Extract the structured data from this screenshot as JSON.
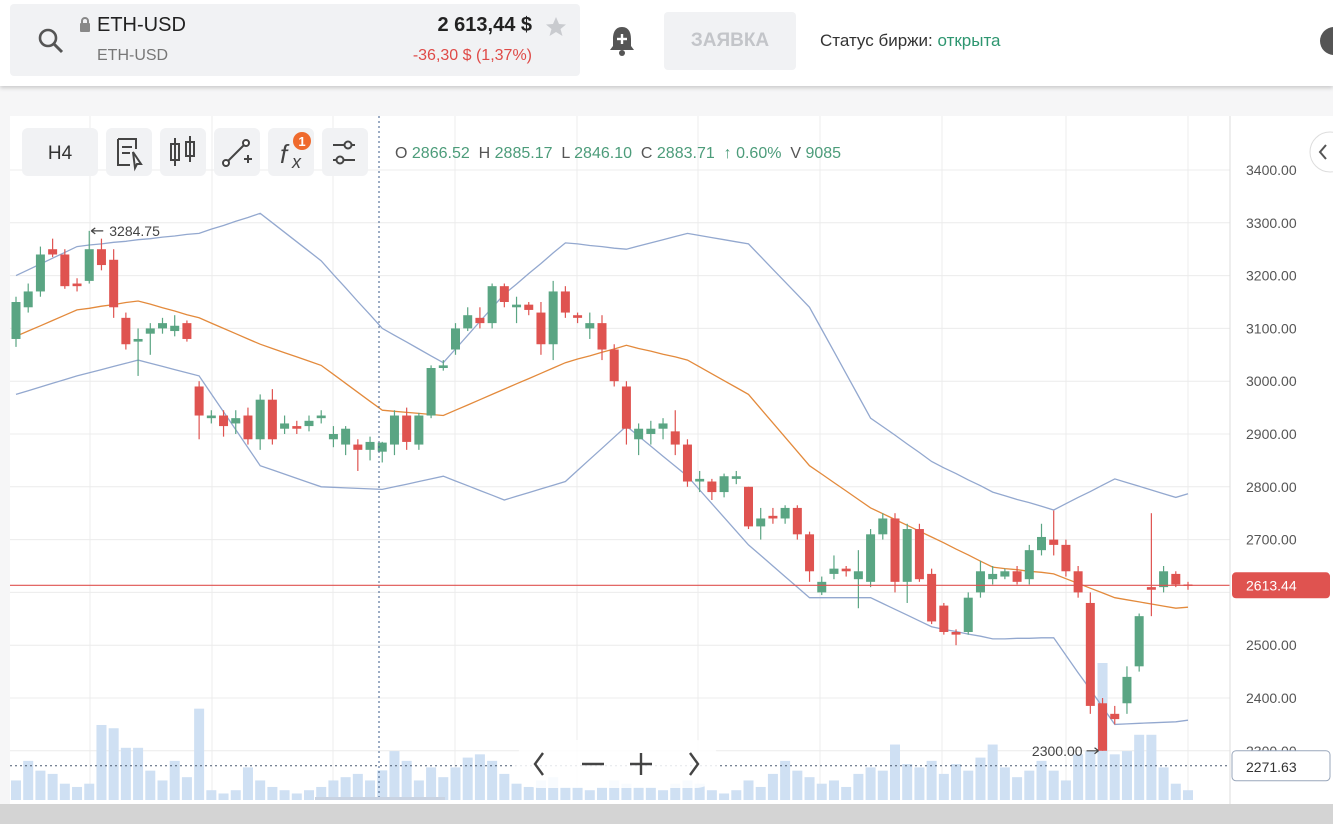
{
  "header": {
    "symbol": "ETH-USD",
    "symbol_sub": "ETH-USD",
    "price": "2 613,44 $",
    "change": "-36,30 $ (1,37%)",
    "order_button": "ЗАЯВКА",
    "status_label": "Статус биржи:",
    "status_value": "открыта"
  },
  "toolbar": {
    "interval": "H4",
    "fx_f": "f",
    "fx_x": "x",
    "indicator_badge": "1"
  },
  "crosshair": {
    "open_label": "O",
    "open": 2866.52,
    "high_label": "H",
    "high": 2885.17,
    "low_label": "L",
    "low": {
      "value": 2846.1,
      "label": "2846.10"
    },
    "close_label": "C",
    "close": 2883.71,
    "change": "↑ 0.60%",
    "volume_label": "V",
    "volume": 9085
  },
  "chart_data": {
    "type": "candlestick",
    "up_color": "#5aa583",
    "down_color": "#df5350",
    "volume_color": "#cfe0f3",
    "ylim": [
      2206.8,
      3502.3
    ],
    "yticks": [
      {
        "value": 2300,
        "label": "2300.00"
      },
      {
        "value": 2400,
        "label": "2400.00"
      },
      {
        "value": 2500,
        "label": "2500.00"
      },
      {
        "value": 2600,
        "label": "2600.00"
      },
      {
        "value": 2700,
        "label": "2700.00"
      },
      {
        "value": 2800,
        "label": "2800.00"
      },
      {
        "value": 2900,
        "label": "2900.00"
      },
      {
        "value": 3000,
        "label": "3000.00"
      },
      {
        "value": 3100,
        "label": "3100.00"
      },
      {
        "value": 3200,
        "label": "3200.00"
      },
      {
        "value": 3300,
        "label": "3300.00"
      },
      {
        "value": 3400,
        "label": "3400.00"
      }
    ],
    "grid": true,
    "open": [
      3080,
      3140,
      3170,
      3250,
      3240,
      3185,
      3190,
      3250,
      3230,
      3120,
      3075,
      3090,
      3100,
      3095,
      3110,
      2990,
      2930,
      2935,
      2920,
      2935,
      2890,
      2965,
      2910,
      2915,
      2915,
      2930,
      2890,
      2880,
      2880,
      2870,
      2866.52,
      2880,
      2935,
      2880,
      2935,
      3025,
      3060,
      3100,
      3120,
      3110,
      3180,
      3140,
      3145,
      3130,
      3070,
      3170,
      3125,
      3100,
      3110,
      3060,
      2990,
      2890,
      2900,
      2910,
      2905,
      2880,
      2810,
      2810,
      2790,
      2815,
      2800,
      2725,
      2745,
      2740,
      2760,
      2710,
      2600,
      2635,
      2645,
      2625,
      2620,
      2710,
      2740,
      2620,
      2720,
      2635,
      2575,
      2525,
      2525,
      2600,
      2625,
      2630,
      2640,
      2625,
      2680,
      2700,
      2690,
      2640,
      2580,
      2390,
      2370,
      2390,
      2460,
      2610,
      2610,
      2635,
      2615
    ],
    "high": [
      3160,
      3185,
      3255,
      3270,
      3250,
      3195,
      3284.75,
      3270,
      3250,
      3130,
      3100,
      3110,
      3120,
      3125,
      3115,
      3000,
      2945,
      2945,
      2945,
      2950,
      2975,
      2985,
      2935,
      2925,
      2935,
      2945,
      2915,
      2915,
      2890,
      2895,
      2885.17,
      2945,
      2950,
      2940,
      3030,
      3040,
      3110,
      3140,
      3140,
      3185,
      3185,
      3160,
      3150,
      3150,
      3190,
      3180,
      3130,
      3130,
      3125,
      3070,
      3000,
      2920,
      2925,
      2930,
      2945,
      2890,
      2830,
      2815,
      2825,
      2830,
      2800,
      2760,
      2760,
      2765,
      2765,
      2715,
      2630,
      2670,
      2650,
      2680,
      2720,
      2750,
      2750,
      2730,
      2730,
      2645,
      2580,
      2530,
      2600,
      2660,
      2650,
      2645,
      2650,
      2690,
      2730,
      2755,
      2700,
      2650,
      2600,
      2400,
      2385,
      2460,
      2560,
      2750,
      2650,
      2640,
      2620
    ],
    "low": [
      3065,
      3130,
      3160,
      3235,
      3175,
      3170,
      3185,
      3210,
      3120,
      3060,
      3010,
      3050,
      3090,
      3085,
      3075,
      2890,
      2920,
      2895,
      2900,
      2880,
      2870,
      2880,
      2900,
      2900,
      2905,
      2920,
      2875,
      2860,
      2830,
      2850,
      2846.1,
      2860,
      2870,
      2870,
      2930,
      3020,
      3050,
      3095,
      3100,
      3100,
      3140,
      3110,
      3125,
      3050,
      3040,
      3120,
      3110,
      3080,
      3040,
      2990,
      2880,
      2860,
      2880,
      2890,
      2860,
      2800,
      2790,
      2775,
      2780,
      2805,
      2720,
      2700,
      2730,
      2730,
      2700,
      2620,
      2595,
      2625,
      2630,
      2570,
      2610,
      2700,
      2600,
      2580,
      2620,
      2540,
      2520,
      2500,
      2520,
      2590,
      2615,
      2625,
      2615,
      2615,
      2670,
      2670,
      2630,
      2590,
      2370,
      2300,
      2350,
      2370,
      2450,
      2555,
      2600,
      2610,
      2605
    ],
    "close": [
      3150,
      3170,
      3240,
      3240,
      3180,
      3180,
      3250,
      3220,
      3140,
      3070,
      3080,
      3100,
      3110,
      3105,
      3080,
      2935,
      2935,
      2915,
      2930,
      2890,
      2965,
      2890,
      2920,
      2910,
      2925,
      2935,
      2900,
      2910,
      2870,
      2885,
      2883.71,
      2935,
      2885,
      2935,
      3025,
      3030,
      3100,
      3125,
      3110,
      3180,
      3150,
      3145,
      3135,
      3070,
      3170,
      3130,
      3120,
      3110,
      3060,
      3000,
      2910,
      2910,
      2910,
      2920,
      2880,
      2810,
      2815,
      2790,
      2820,
      2820,
      2725,
      2740,
      2740,
      2760,
      2710,
      2640,
      2620,
      2645,
      2640,
      2640,
      2710,
      2740,
      2620,
      2720,
      2625,
      2545,
      2525,
      2520,
      2590,
      2640,
      2635,
      2640,
      2620,
      2680,
      2705,
      2690,
      2640,
      2600,
      2385,
      2300,
      2360,
      2440,
      2555,
      2605,
      2640,
      2615,
      2613.44
    ],
    "volume": [
      6000,
      12000,
      9000,
      8000,
      5000,
      4000,
      5000,
      23000,
      22000,
      16000,
      16000,
      9000,
      6000,
      12000,
      7000,
      28000,
      3000,
      2000,
      3000,
      10000,
      6000,
      4000,
      3000,
      2000,
      3000,
      4000,
      6000,
      7000,
      8000,
      6000,
      9085,
      15000,
      12000,
      6000,
      10000,
      7000,
      10000,
      13000,
      14000,
      12000,
      8000,
      5000,
      4000,
      6000,
      7000,
      4000,
      4000,
      3000,
      4000,
      6000,
      5000,
      4000,
      4000,
      3000,
      5000,
      6000,
      5000,
      3000,
      2000,
      3000,
      6000,
      4000,
      8000,
      12000,
      9000,
      7000,
      5000,
      6000,
      4000,
      8000,
      10000,
      9000,
      17000,
      11000,
      10000,
      12000,
      8000,
      11000,
      9000,
      13000,
      17000,
      10000,
      7000,
      9000,
      12000,
      9000,
      6000,
      14000,
      15000,
      42000,
      14000,
      15000,
      20000,
      20000,
      10000,
      5000,
      3000
    ],
    "lines": [
      {
        "color": "#93a8cf",
        "values": [
          3200,
          3211,
          3222,
          3233,
          3244,
          3255,
          3258,
          3260,
          3263,
          3265,
          3268,
          3270,
          3273,
          3275,
          3278,
          3280,
          3288,
          3295,
          3303,
          3310,
          3318,
          3300,
          3282,
          3264,
          3246,
          3228,
          3202,
          3177,
          3151,
          3126,
          3100,
          3087,
          3074,
          3061,
          3048,
          3035,
          3061,
          3087,
          3113,
          3139,
          3165,
          3184,
          3204,
          3223,
          3243,
          3262,
          3260,
          3257,
          3255,
          3252,
          3250,
          3256,
          3262,
          3268,
          3274,
          3280,
          3276,
          3272,
          3268,
          3264,
          3260,
          3236,
          3212,
          3188,
          3164,
          3140,
          3098,
          3056,
          3014,
          2972,
          2930,
          2914,
          2898,
          2881,
          2865,
          2848,
          2836,
          2825,
          2813,
          2802,
          2790,
          2783,
          2776,
          2770,
          2763,
          2756,
          2768,
          2780,
          2791,
          2803,
          2815,
          2808,
          2801,
          2794,
          2787,
          2780,
          2787
        ]
      },
      {
        "color": "#e38a3c",
        "values": [
          3085,
          3095,
          3105,
          3115,
          3125,
          3135,
          3138,
          3142,
          3145,
          3149,
          3152,
          3146,
          3139,
          3133,
          3126,
          3120,
          3110,
          3100,
          3090,
          3080,
          3070,
          3062,
          3054,
          3046,
          3038,
          3030,
          3013,
          2996,
          2979,
          2962,
          2945,
          2943,
          2941,
          2939,
          2937,
          2935,
          2945,
          2955,
          2965,
          2975,
          2985,
          2995,
          3005,
          3015,
          3025,
          3035,
          3042,
          3048,
          3055,
          3061,
          3068,
          3062,
          3057,
          3051,
          3046,
          3040,
          3027,
          3014,
          3001,
          2988,
          2975,
          2948,
          2921,
          2894,
          2867,
          2840,
          2824,
          2808,
          2792,
          2776,
          2760,
          2749,
          2738,
          2727,
          2716,
          2705,
          2694,
          2682,
          2671,
          2659,
          2648,
          2645,
          2643,
          2640,
          2638,
          2635,
          2626,
          2617,
          2608,
          2599,
          2590,
          2586,
          2582,
          2578,
          2574,
          2570,
          2572
        ]
      },
      {
        "color": "#93a8cf",
        "values": [
          2975,
          2982,
          2989,
          2996,
          3003,
          3010,
          3016,
          3022,
          3028,
          3034,
          3040,
          3034,
          3028,
          3022,
          3016,
          3010,
          2976,
          2942,
          2908,
          2874,
          2840,
          2832,
          2824,
          2816,
          2808,
          2800,
          2799,
          2798,
          2797,
          2796,
          2795,
          2800,
          2805,
          2810,
          2815,
          2820,
          2811,
          2802,
          2793,
          2784,
          2775,
          2782,
          2789,
          2796,
          2803,
          2810,
          2831,
          2852,
          2873,
          2894,
          2915,
          2896,
          2877,
          2858,
          2839,
          2820,
          2794,
          2768,
          2742,
          2716,
          2690,
          2670,
          2650,
          2630,
          2610,
          2590,
          2590,
          2590,
          2590,
          2590,
          2590,
          2579,
          2568,
          2557,
          2546,
          2535,
          2530,
          2526,
          2521,
          2517,
          2512,
          2512,
          2513,
          2513,
          2514,
          2514,
          2481,
          2448,
          2416,
          2383,
          2350,
          2351,
          2352,
          2353,
          2354,
          2355,
          2358
        ]
      }
    ],
    "last_price": 2613.44,
    "last_price_color": "#df5350",
    "level": 2271.63,
    "max_marker": 3284.75,
    "min_marker": {
      "value": 2300,
      "label": "2300.00"
    }
  }
}
